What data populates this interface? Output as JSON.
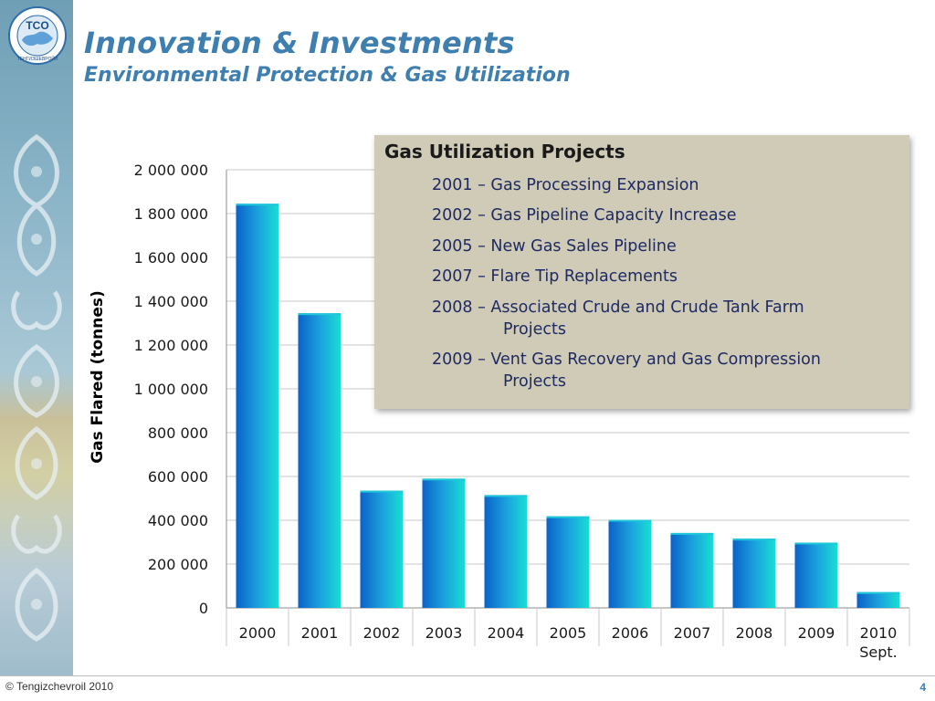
{
  "slide": {
    "title": "Innovation & Investments",
    "subtitle": "Environmental Protection & Gas Utilization",
    "logo_text": "TCO",
    "logo_ring_text": "ТЕНГИЗШЕВРОЙЛ",
    "copyright": "© Tengizchevroil 2010",
    "page_number": "4"
  },
  "projects": {
    "title": "Gas Utilization Projects",
    "items": [
      {
        "line1": "2001 – Gas Processing Expansion",
        "line2": ""
      },
      {
        "line1": "2002 – Gas Pipeline Capacity Increase",
        "line2": ""
      },
      {
        "line1": "2005 – New Gas Sales Pipeline",
        "line2": ""
      },
      {
        "line1": "2007 – Flare Tip Replacements",
        "line2": ""
      },
      {
        "line1": "2008 – Associated Crude and Crude Tank Farm",
        "line2": "Projects"
      },
      {
        "line1": "2009 – Vent Gas Recovery and Gas Compression",
        "line2": "Projects"
      }
    ]
  },
  "colors": {
    "title": "#3f7fb0",
    "bar_top": "#1ec8d8",
    "bar_left": "#0a62c8",
    "bar_right": "#18e0d2",
    "project_box": "#cfcbb6",
    "project_text": "#1f2a63"
  },
  "chart_data": {
    "type": "bar",
    "categories": [
      "2000",
      "2001",
      "2002",
      "2003",
      "2004",
      "2005",
      "2006",
      "2007",
      "2008",
      "2009",
      "2010"
    ],
    "category_sublabels": [
      "",
      "",
      "",
      "",
      "",
      "",
      "",
      "",
      "",
      "",
      "Sept."
    ],
    "values": [
      1845000,
      1345000,
      535000,
      590000,
      515000,
      418000,
      402000,
      342000,
      316000,
      298000,
      72000
    ],
    "ylabel": "Gas Flared (tonnes)",
    "xlabel": "",
    "ylim": [
      0,
      2000000
    ],
    "yticks": [
      0,
      200000,
      400000,
      600000,
      800000,
      1000000,
      1200000,
      1400000,
      1600000,
      1800000,
      2000000
    ],
    "ytick_labels": [
      "0",
      "200 000",
      "400 000",
      "600 000",
      "800 000",
      "1 000 000",
      "1 200 000",
      "1 400 000",
      "1 600 000",
      "1 800 000",
      "2 000 000"
    ],
    "grid": true,
    "legend": "none"
  }
}
